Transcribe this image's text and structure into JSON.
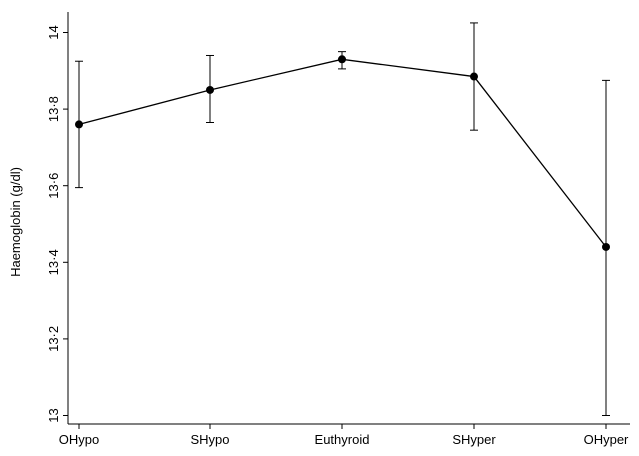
{
  "chart_data": {
    "type": "line",
    "title": "",
    "xlabel": "",
    "ylabel": "Haemoglobin (g/dl)",
    "categories": [
      "OHypo",
      "SHypo",
      "Euthyroid",
      "SHyper",
      "OHyper"
    ],
    "values": [
      13.76,
      13.85,
      13.93,
      13.885,
      13.44
    ],
    "error_low": [
      13.595,
      13.765,
      13.905,
      13.745,
      13.0
    ],
    "error_high": [
      13.925,
      13.94,
      13.95,
      14.025,
      13.875
    ],
    "ylim": [
      13,
      14.05
    ],
    "y_ticks": [
      13,
      13.2,
      13.4,
      13.6,
      13.8,
      14
    ],
    "y_tick_labels": [
      "13",
      "13·2",
      "13·4",
      "13·6",
      "13·8",
      "14"
    ],
    "grid": false,
    "legend": "none",
    "colors": {
      "line": "#000000",
      "marker": "#000000",
      "axis": "#000000"
    }
  }
}
